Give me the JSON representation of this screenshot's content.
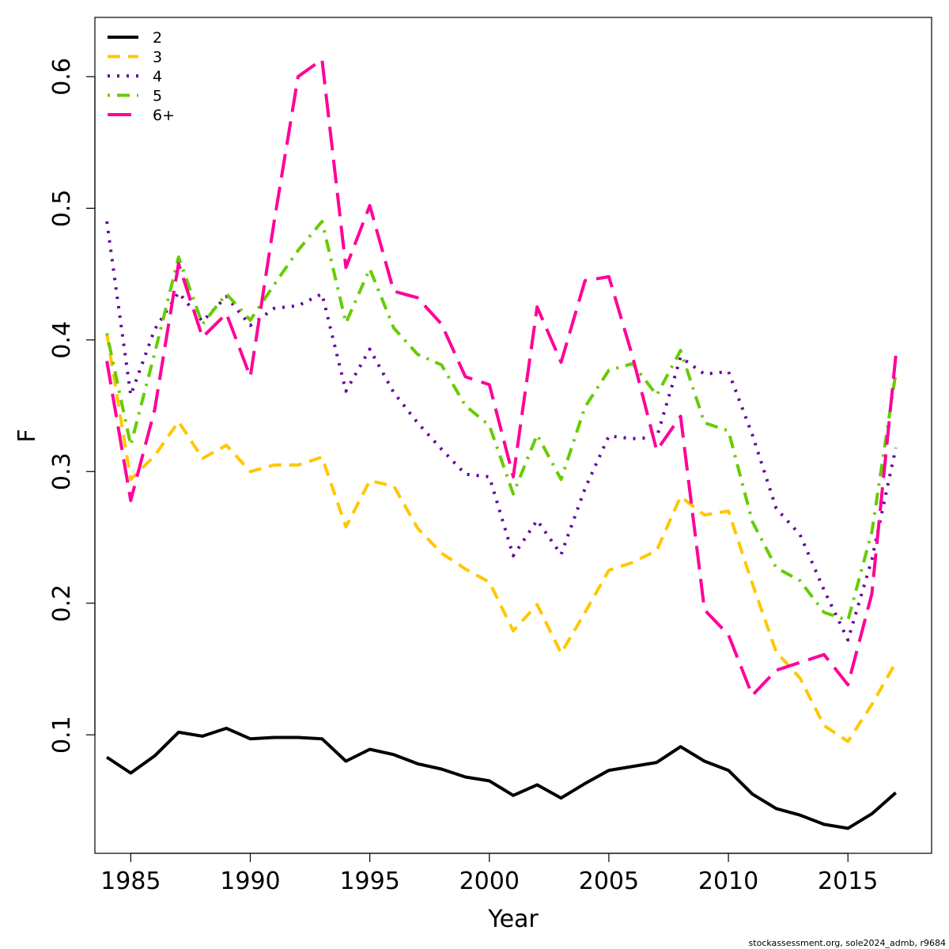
{
  "chart_data": {
    "type": "line",
    "title": "",
    "xlabel": "Year",
    "ylabel": "F",
    "xlim": [
      1983.5,
      2018.5
    ],
    "ylim": [
      0.01,
      0.645
    ],
    "xticks": [
      1985,
      1990,
      1995,
      2000,
      2005,
      2010,
      2015
    ],
    "xtick_labels": [
      "1985",
      "1990",
      "1995",
      "2000",
      "2005",
      "2010",
      "2015"
    ],
    "yticks": [
      0.1,
      0.2,
      0.3,
      0.4,
      0.5,
      0.6
    ],
    "ytick_labels": [
      "0.1",
      "0.2",
      "0.3",
      "0.4",
      "0.5",
      "0.6"
    ],
    "grid": false,
    "legend_position": "top-left",
    "x": [
      1984,
      1985,
      1986,
      1987,
      1988,
      1989,
      1990,
      1991,
      1992,
      1993,
      1994,
      1995,
      1996,
      1997,
      1998,
      1999,
      2000,
      2001,
      2002,
      2003,
      2004,
      2005,
      2006,
      2007,
      2008,
      2009,
      2010,
      2011,
      2012,
      2013,
      2014,
      2015,
      2016,
      2017
    ],
    "series": [
      {
        "name": "2",
        "color": "#000000",
        "dash": "solid",
        "values": [
          0.083,
          0.071,
          0.084,
          0.102,
          0.099,
          0.105,
          0.097,
          0.098,
          0.098,
          0.097,
          0.08,
          0.089,
          0.085,
          0.078,
          0.074,
          0.068,
          0.065,
          0.054,
          0.062,
          0.052,
          0.063,
          0.073,
          0.076,
          0.079,
          0.091,
          0.08,
          0.073,
          0.055,
          0.044,
          0.039,
          0.032,
          0.029,
          0.04,
          0.056
        ]
      },
      {
        "name": "3",
        "color": "#FFC700",
        "dash": "dashed",
        "values": [
          0.405,
          0.294,
          0.312,
          0.338,
          0.31,
          0.32,
          0.3,
          0.305,
          0.305,
          0.311,
          0.258,
          0.293,
          0.289,
          0.257,
          0.238,
          0.226,
          0.216,
          0.179,
          0.199,
          0.162,
          0.193,
          0.225,
          0.231,
          0.24,
          0.281,
          0.267,
          0.27,
          0.215,
          0.163,
          0.143,
          0.107,
          0.095,
          0.123,
          0.155
        ]
      },
      {
        "name": "4",
        "color": "#660099",
        "dash": "dotted",
        "values": [
          0.49,
          0.358,
          0.408,
          0.436,
          0.414,
          0.433,
          0.411,
          0.424,
          0.426,
          0.435,
          0.361,
          0.393,
          0.36,
          0.337,
          0.317,
          0.298,
          0.296,
          0.236,
          0.263,
          0.237,
          0.287,
          0.327,
          0.325,
          0.326,
          0.387,
          0.374,
          0.376,
          0.328,
          0.272,
          0.252,
          0.21,
          0.172,
          0.233,
          0.318
        ]
      },
      {
        "name": "5",
        "color": "#66CC00",
        "dash": "dotdash",
        "values": [
          0.405,
          0.32,
          0.39,
          0.463,
          0.412,
          0.435,
          0.415,
          0.442,
          0.468,
          0.49,
          0.413,
          0.454,
          0.409,
          0.389,
          0.381,
          0.35,
          0.335,
          0.283,
          0.328,
          0.294,
          0.349,
          0.377,
          0.382,
          0.358,
          0.392,
          0.337,
          0.331,
          0.262,
          0.227,
          0.217,
          0.193,
          0.187,
          0.254,
          0.375
        ]
      },
      {
        "name": "6+",
        "color": "#FF0099",
        "dash": "longdash",
        "values": [
          0.384,
          0.278,
          0.347,
          0.458,
          0.402,
          0.42,
          0.372,
          0.49,
          0.6,
          0.613,
          0.455,
          0.502,
          0.437,
          0.432,
          0.412,
          0.372,
          0.366,
          0.296,
          0.425,
          0.383,
          0.445,
          0.448,
          0.387,
          0.316,
          0.342,
          0.195,
          0.176,
          0.13,
          0.149,
          0.155,
          0.161,
          0.138,
          0.207,
          0.388
        ]
      }
    ]
  },
  "footer": "stockassessment.org, sole2024_admb, r9684"
}
